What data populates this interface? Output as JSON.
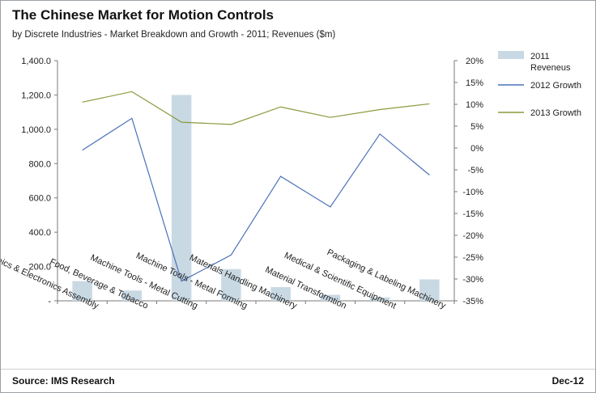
{
  "title": "The Chinese Market for Motion Controls",
  "subtitle": "by Discrete Industries - Market Breakdown and Growth - 2011; Revenues ($m)",
  "footer": {
    "source": "Source: IMS Research",
    "date": "Dec-12"
  },
  "colors": {
    "bar": "#c9d9e4",
    "line2012": "#4a72b8",
    "line2013": "#8a9a3c",
    "axis": "#7a7a7a"
  },
  "chart_data": {
    "type": "bar+line",
    "categories": [
      "Electronics & Electronics Assembly",
      "Food, Beverage & Tobacco",
      "Machine Tools - Metal Cutting",
      "Machine Tools - Metal Forming",
      "Materials Handling Machinery",
      "Material Transformtion",
      "Medical & Scientific Equipment",
      "Packaging & Labeling Machinery"
    ],
    "left_axis": {
      "ticks": [
        "-",
        "200.0",
        "400.0",
        "600.0",
        "800.0",
        "1,000.0",
        "1,200.0",
        "1,400.0"
      ],
      "ylim": [
        0,
        1400
      ]
    },
    "right_axis": {
      "ticks": [
        "20%",
        "15%",
        "10%",
        "5%",
        "0%",
        "-5%",
        "-10%",
        "-15%",
        "-20%",
        "-25%",
        "-30%",
        "-35%"
      ],
      "ylim": [
        -35,
        20
      ]
    },
    "series": [
      {
        "name": "2011 Reveneus",
        "type": "bar",
        "axis": "left",
        "values": [
          115,
          60,
          1200,
          185,
          80,
          35,
          20,
          125
        ]
      },
      {
        "name": "2012 Growth",
        "type": "line",
        "axis": "right",
        "values": [
          -0.5,
          6.8,
          -30.5,
          -24.5,
          -6.5,
          -13.5,
          3.2,
          -6.2
        ]
      },
      {
        "name": "2013 Growth",
        "type": "line",
        "axis": "right",
        "values": [
          10.5,
          12.9,
          5.9,
          5.4,
          9.4,
          7.0,
          8.8,
          10.1
        ]
      }
    ],
    "legend_position": "right"
  }
}
